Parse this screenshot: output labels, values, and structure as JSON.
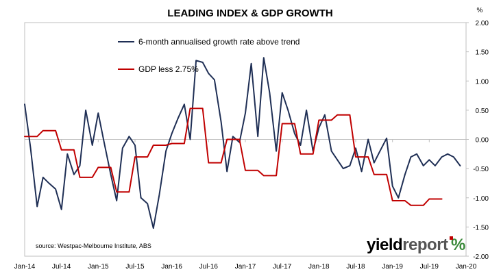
{
  "chart_data": {
    "type": "line",
    "title": "LEADING INDEX & GDP GROWTH",
    "y_unit_label": "%",
    "ylim": [
      -2.0,
      2.0
    ],
    "y_ticks": [
      "2.00",
      "1.50",
      "1.00",
      "0.50",
      "0.00",
      "-0.50",
      "-1.00",
      "-1.50",
      "-2.00"
    ],
    "xlim": [
      2014.0,
      2020.0
    ],
    "x_ticks": [
      {
        "label": "Jan-14",
        "x": 2014.0
      },
      {
        "label": "Jul-14",
        "x": 2014.5
      },
      {
        "label": "Jan-15",
        "x": 2015.0
      },
      {
        "label": "Jul-15",
        "x": 2015.5
      },
      {
        "label": "Jan-16",
        "x": 2016.0
      },
      {
        "label": "Jul-16",
        "x": 2016.5
      },
      {
        "label": "Jan-17",
        "x": 2017.0
      },
      {
        "label": "Jul-17",
        "x": 2017.5
      },
      {
        "label": "Jan-18",
        "x": 2018.0
      },
      {
        "label": "Jul-18",
        "x": 2018.5
      },
      {
        "label": "Jan-19",
        "x": 2019.0
      },
      {
        "label": "Jul-19",
        "x": 2019.5
      },
      {
        "label": "Jan-20",
        "x": 2020.0
      }
    ],
    "series": [
      {
        "name": "6-month annualised growth rate above trend",
        "color": "#1f2f55",
        "x": [
          2014.0,
          2014.08,
          2014.17,
          2014.25,
          2014.33,
          2014.42,
          2014.5,
          2014.58,
          2014.67,
          2014.75,
          2014.83,
          2014.92,
          2015.0,
          2015.08,
          2015.17,
          2015.25,
          2015.33,
          2015.42,
          2015.5,
          2015.58,
          2015.67,
          2015.75,
          2015.83,
          2015.92,
          2016.0,
          2016.08,
          2016.17,
          2016.25,
          2016.33,
          2016.42,
          2016.5,
          2016.58,
          2016.67,
          2016.75,
          2016.83,
          2016.92,
          2017.0,
          2017.08,
          2017.17,
          2017.25,
          2017.33,
          2017.42,
          2017.5,
          2017.58,
          2017.67,
          2017.75,
          2017.83,
          2017.92,
          2018.0,
          2018.08,
          2018.17,
          2018.25,
          2018.33,
          2018.42,
          2018.5,
          2018.58,
          2018.67,
          2018.75,
          2018.83,
          2018.92,
          2019.0,
          2019.08,
          2019.17,
          2019.25,
          2019.33,
          2019.42,
          2019.5,
          2019.58,
          2019.67,
          2019.75,
          2019.83,
          2019.92
        ],
        "values": [
          0.6,
          -0.15,
          -1.15,
          -0.65,
          -0.75,
          -0.85,
          -1.2,
          -0.25,
          -0.6,
          -0.45,
          0.5,
          -0.1,
          0.45,
          -0.05,
          -0.6,
          -1.05,
          -0.15,
          0.05,
          -0.1,
          -1.0,
          -1.1,
          -1.52,
          -0.95,
          -0.2,
          0.1,
          0.35,
          0.6,
          0.0,
          1.35,
          1.32,
          1.13,
          1.02,
          0.3,
          -0.55,
          0.05,
          -0.05,
          0.45,
          1.3,
          0.05,
          1.4,
          0.8,
          -0.2,
          0.8,
          0.5,
          0.1,
          -0.1,
          0.5,
          -0.2,
          0.2,
          0.42,
          -0.2,
          -0.35,
          -0.5,
          -0.45,
          -0.15,
          -0.55,
          0.0,
          -0.4,
          -0.2,
          0.02,
          -0.8,
          -1.0,
          -0.6,
          -0.3,
          -0.25,
          -0.45,
          -0.35,
          -0.45,
          -0.3,
          -0.25,
          -0.3,
          -0.45
        ]
      },
      {
        "name": "GDP less 2.75%",
        "color": "#c00000",
        "x": [
          2014.0,
          2014.17,
          2014.25,
          2014.42,
          2014.5,
          2014.67,
          2014.75,
          2014.92,
          2015.0,
          2015.17,
          2015.25,
          2015.42,
          2015.5,
          2015.67,
          2015.75,
          2015.92,
          2016.0,
          2016.17,
          2016.25,
          2016.42,
          2016.5,
          2016.67,
          2016.75,
          2016.92,
          2017.0,
          2017.17,
          2017.25,
          2017.42,
          2017.5,
          2017.67,
          2017.75,
          2017.92,
          2018.0,
          2018.17,
          2018.25,
          2018.42,
          2018.5,
          2018.67,
          2018.75,
          2018.92,
          2019.0,
          2019.17,
          2019.25,
          2019.42,
          2019.5,
          2019.67
        ],
        "values": [
          0.05,
          0.05,
          0.15,
          0.15,
          -0.18,
          -0.18,
          -0.65,
          -0.65,
          -0.48,
          -0.48,
          -0.9,
          -0.9,
          -0.3,
          -0.3,
          -0.1,
          -0.1,
          -0.07,
          -0.07,
          0.53,
          0.53,
          -0.4,
          -0.4,
          0.0,
          0.0,
          -0.53,
          -0.53,
          -0.62,
          -0.62,
          0.27,
          0.27,
          -0.25,
          -0.25,
          0.33,
          0.33,
          0.42,
          0.42,
          -0.3,
          -0.3,
          -0.6,
          -0.6,
          -1.05,
          -1.05,
          -1.13,
          -1.13,
          -1.02,
          -1.02
        ]
      }
    ],
    "source": "source: Westpac-Melbourne Institute, ABS",
    "logo": {
      "text_dark": "yield",
      "text_light": "report",
      "mark": "%"
    }
  }
}
